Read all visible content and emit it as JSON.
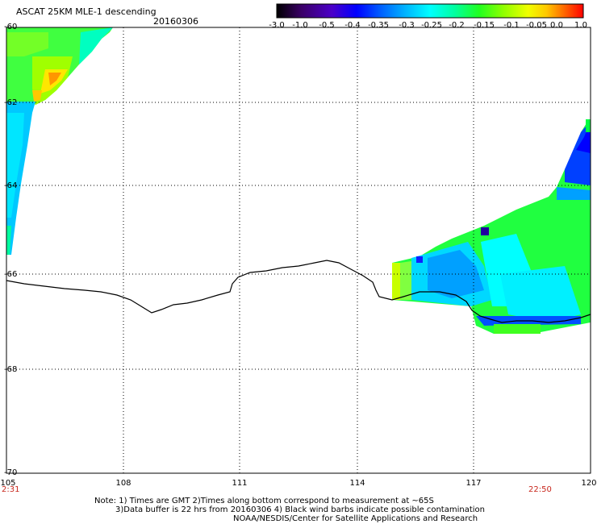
{
  "header": {
    "title": "ASCAT 25KM MLE-1 descending",
    "date": "20160306"
  },
  "colorbar": {
    "labels": [
      "-3.0",
      "-1.0",
      "-0.5",
      "-0.4",
      "-0.35",
      "-0.3",
      "-0.25",
      "-0.2",
      "-0.15",
      "-0.1",
      "-0.05",
      "0.0",
      "1.0"
    ],
    "colors": [
      "#000000",
      "#3a0066",
      "#4b00c8",
      "#0000ff",
      "#0050ff",
      "#00a0ff",
      "#00e6ff",
      "#00ffc0",
      "#00ff40",
      "#60ff00",
      "#c8ff00",
      "#ffe600",
      "#ff9600",
      "#ff3200",
      "#ff0000"
    ]
  },
  "map": {
    "lat_labels": [
      "-60",
      "-62",
      "-64",
      "-66",
      "-68",
      "-70"
    ],
    "lon_labels": [
      "105",
      "108",
      "111",
      "114",
      "117",
      "120"
    ],
    "time_start": "2:31",
    "time_end": "22:50"
  },
  "notes": {
    "line1": "Note: 1) Times are GMT 2)Times along bottom correspond to measurement at ~65S",
    "line2": "3)Data buffer is 22 hrs from 20160306 4) Black wind barbs indicate possible contamination",
    "line3": "NOAA/NESDIS/Center for Satellite Applications and Research"
  }
}
